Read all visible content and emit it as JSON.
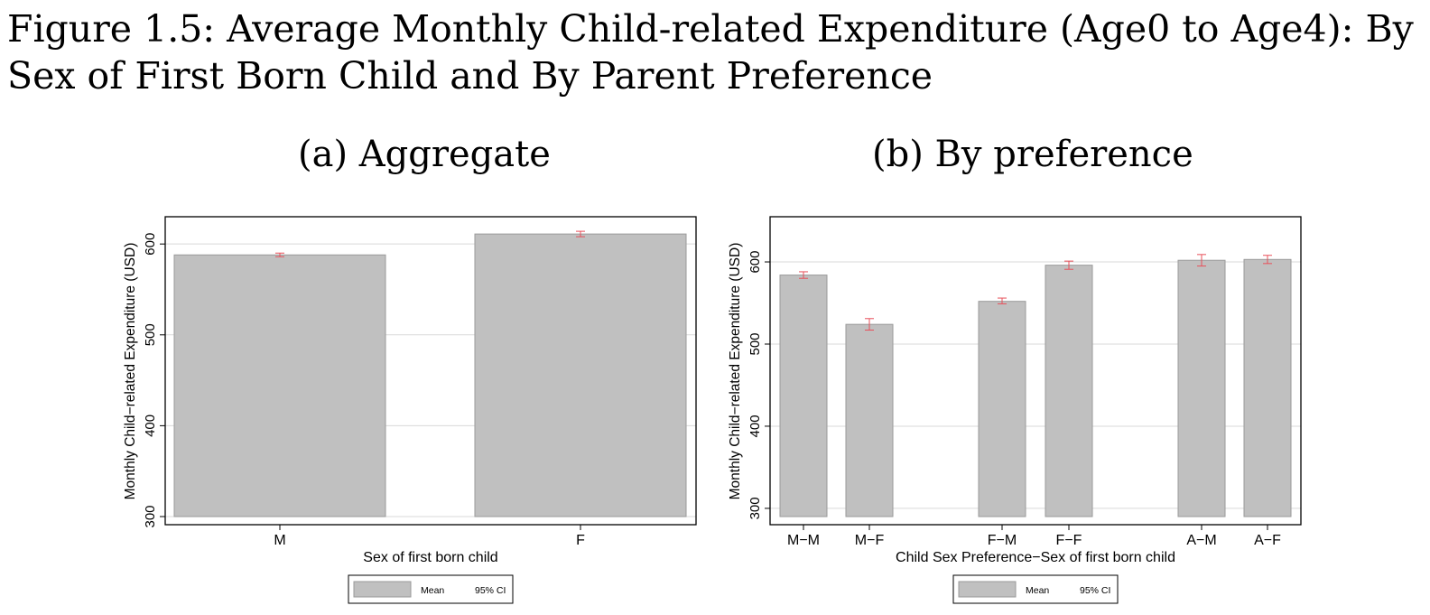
{
  "figure_title": "Figure 1.5: Average Monthly Child-related Expenditure (Age0 to Age4): By Sex of First Born Child and By Parent Preference",
  "colors": {
    "bar_fill": "#c0c0c0",
    "bar_stroke": "#9a9a9a",
    "ci": "#e8505a",
    "grid": "#d9d9d9",
    "frame": "#000000"
  },
  "chart_data": [
    {
      "type": "bar",
      "title": "(a) Aggregate",
      "categories": [
        "M",
        "F"
      ],
      "values": [
        588,
        611
      ],
      "ci_low": [
        586,
        608
      ],
      "ci_high": [
        590,
        614
      ],
      "xlabel": "Sex of first born child",
      "ylabel": "Monthly Child−related Expenditure (USD)",
      "ylim": [
        300,
        630
      ],
      "yticks": [
        300,
        400,
        500,
        600
      ],
      "grid": true,
      "legend": {
        "placement": "bottom",
        "entries": [
          "Mean",
          "95% CI"
        ]
      }
    },
    {
      "type": "bar",
      "title": "(b) By preference",
      "categories": [
        "M−M",
        "M−F",
        "F−M",
        "F−F",
        "A−M",
        "A−F"
      ],
      "values": [
        584,
        524,
        552,
        596,
        602,
        603
      ],
      "ci_low": [
        580,
        517,
        549,
        591,
        595,
        598
      ],
      "ci_high": [
        588,
        531,
        556,
        601,
        609,
        608
      ],
      "xlabel": "Child Sex Preference−Sex of first born child",
      "ylabel": "Monthly Child−related Expenditure (USD)",
      "ylim": [
        290,
        655
      ],
      "yticks": [
        300,
        400,
        500,
        600
      ],
      "grid": true,
      "legend": {
        "placement": "bottom",
        "entries": [
          "Mean",
          "95% CI"
        ]
      }
    }
  ]
}
